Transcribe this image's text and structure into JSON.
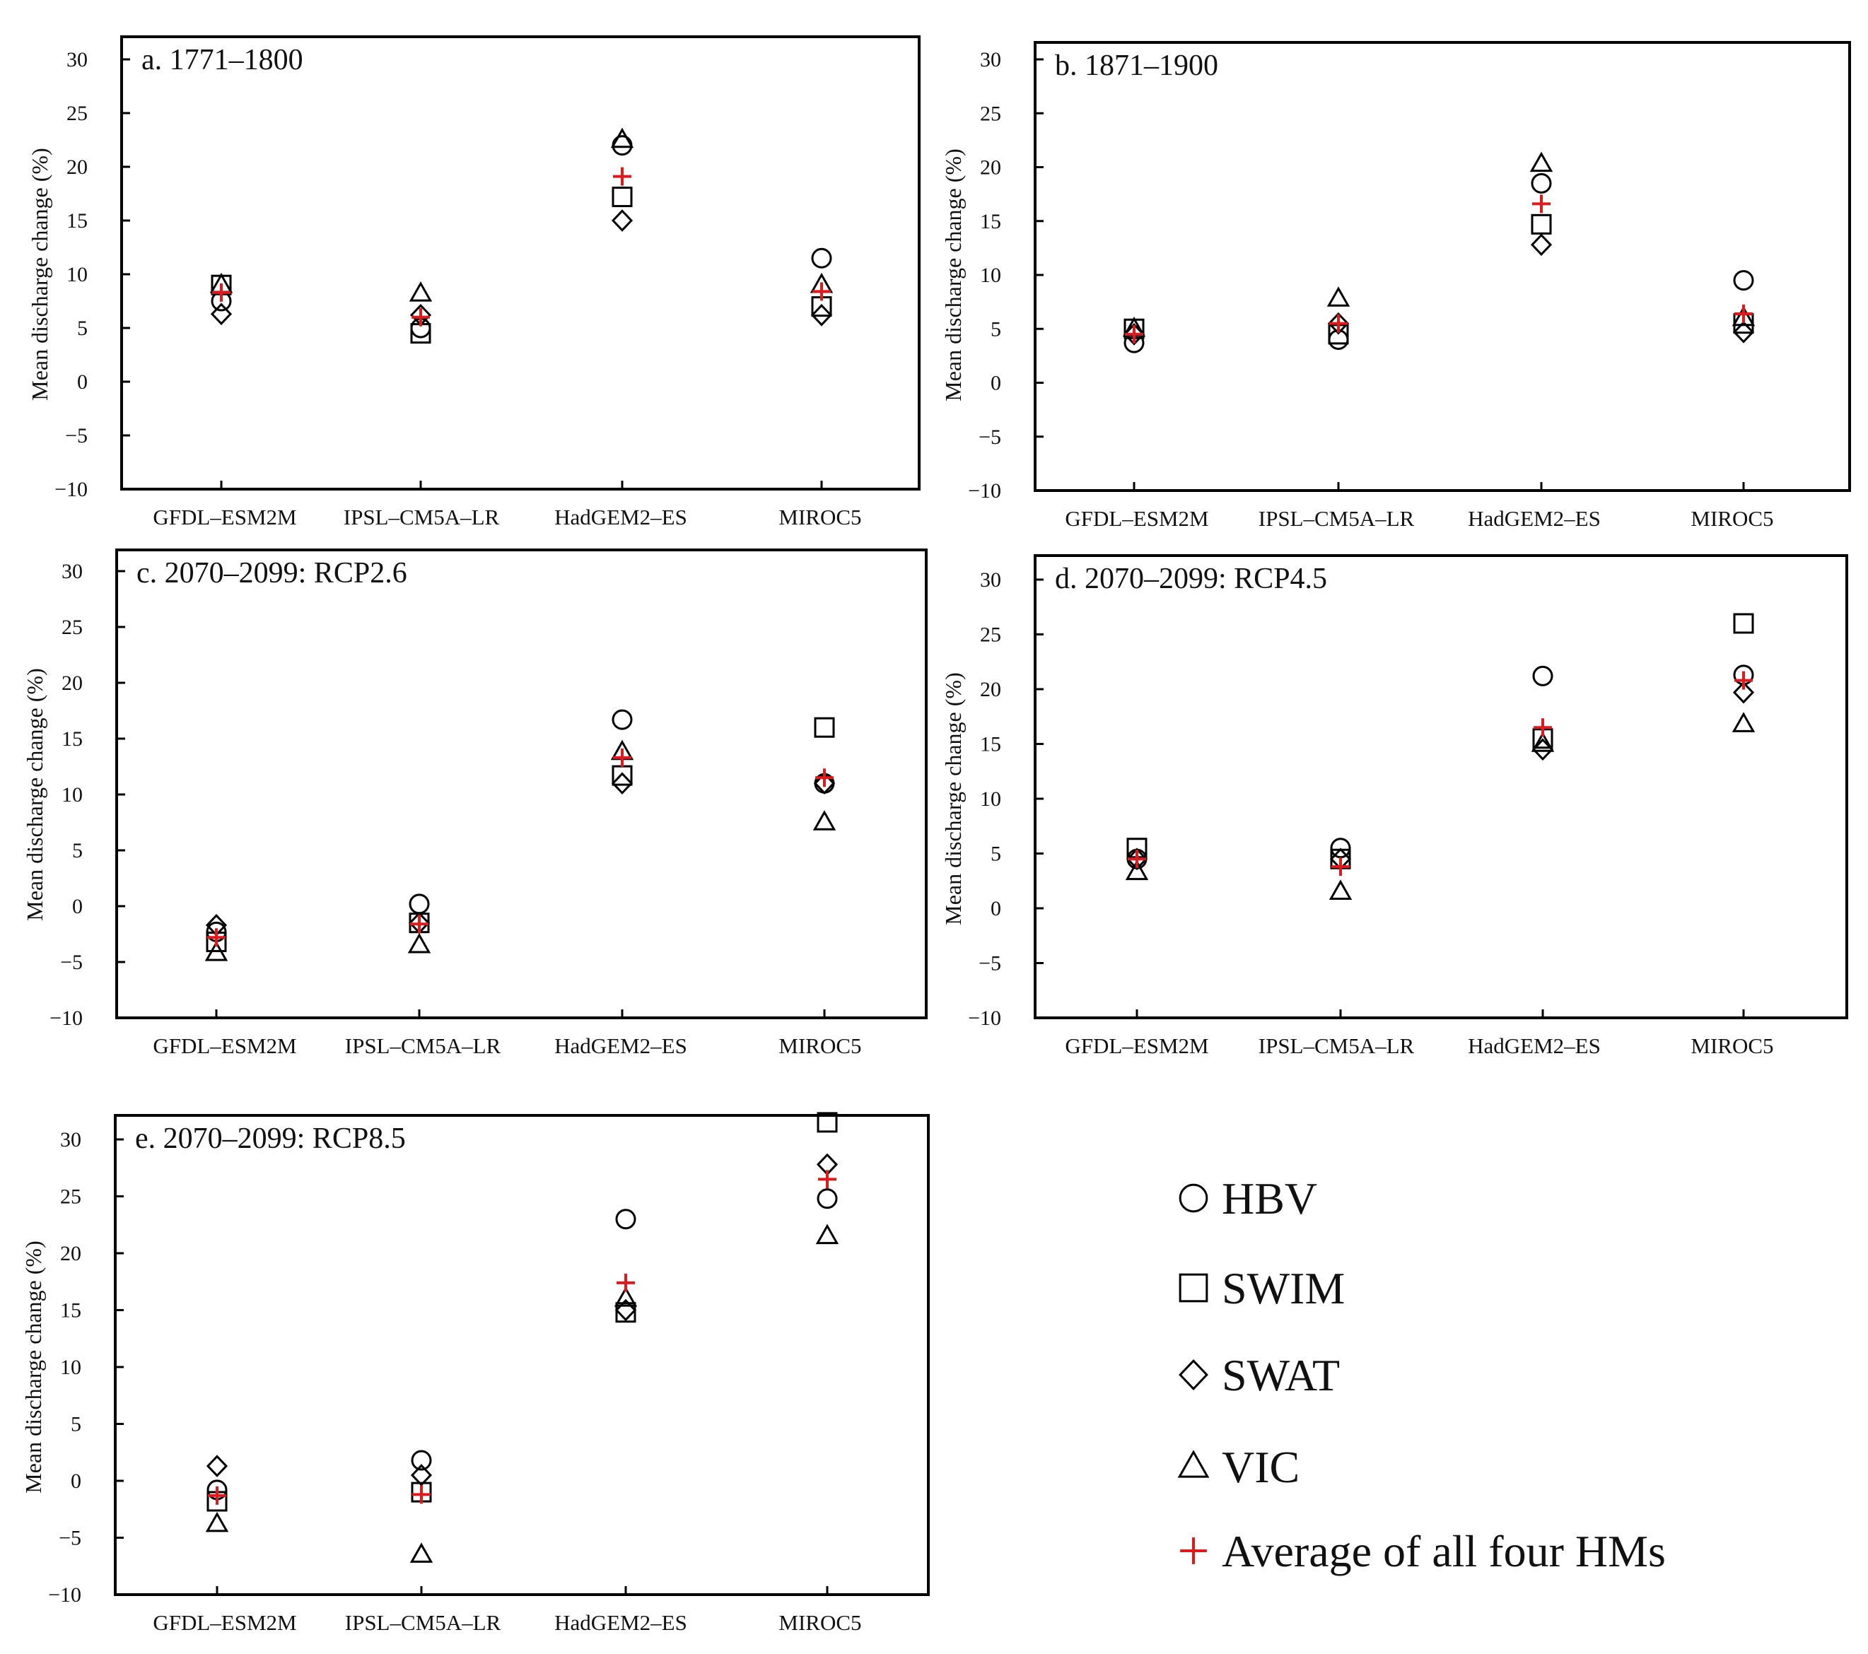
{
  "chart_data": {
    "type": "scatter",
    "ylabel": "Mean discharge change (%)",
    "categories": [
      "GFDL–ESM2M",
      "IPSL–CM5A–LR",
      "HadGEM2–ES",
      "MIROC5"
    ],
    "ylim": [
      -10,
      30
    ],
    "yticks": [
      30,
      25,
      20,
      15,
      10,
      5,
      0,
      -5,
      -10
    ],
    "ytick_labels": [
      "30",
      "25",
      "20",
      "15",
      "10",
      "5",
      "0",
      "−5",
      "−10"
    ],
    "legend": {
      "position": "bottom-right",
      "items": [
        {
          "key": "hbv",
          "label": "HBV",
          "marker": "circle"
        },
        {
          "key": "swim",
          "label": "SWIM",
          "marker": "square"
        },
        {
          "key": "swat",
          "label": "SWAT",
          "marker": "diamond"
        },
        {
          "key": "vic",
          "label": "VIC",
          "marker": "triangle"
        },
        {
          "key": "avg",
          "label": "Average of all four HMs",
          "marker": "plus",
          "color": "#e0191c"
        }
      ]
    },
    "panels": [
      {
        "title": "a. 1771–1800",
        "series": {
          "hbv": [
            7.5,
            5.0,
            22.0,
            11.5
          ],
          "swim": [
            9.0,
            4.5,
            17.2,
            7.0
          ],
          "swat": [
            6.3,
            6.2,
            15.0,
            6.2
          ],
          "vic": [
            9.0,
            8.2,
            22.5,
            9.0
          ],
          "avg": [
            8.3,
            6.0,
            19.1,
            8.4
          ]
        }
      },
      {
        "title": "b. 1871–1900",
        "series": {
          "hbv": [
            3.7,
            4.0,
            18.5,
            9.5
          ],
          "swim": [
            5.0,
            4.5,
            14.7,
            5.5
          ],
          "swat": [
            4.5,
            5.5,
            12.8,
            4.7
          ],
          "vic": [
            5.0,
            7.8,
            20.3,
            6.0
          ],
          "avg": [
            4.5,
            5.5,
            16.6,
            6.4
          ]
        }
      },
      {
        "title": "c. 2070–2099: RCP2.6",
        "series": {
          "hbv": [
            -2.3,
            0.2,
            16.7,
            11.0
          ],
          "swim": [
            -3.2,
            -1.5,
            11.7,
            16.0
          ],
          "swat": [
            -1.7,
            -1.5,
            11.0,
            11.0
          ],
          "vic": [
            -4.2,
            -3.5,
            13.8,
            7.5
          ],
          "avg": [
            -2.8,
            -1.6,
            13.3,
            11.5
          ]
        }
      },
      {
        "title": "d. 2070–2099: RCP4.5",
        "series": {
          "hbv": [
            4.5,
            5.5,
            21.2,
            21.3
          ],
          "swim": [
            5.5,
            4.5,
            15.5,
            26.0
          ],
          "swat": [
            4.5,
            4.5,
            14.5,
            19.7
          ],
          "vic": [
            3.3,
            1.5,
            15.0,
            16.8
          ],
          "avg": [
            4.5,
            3.8,
            16.5,
            20.8
          ]
        }
      },
      {
        "title": "e. 2070–2099: RCP8.5",
        "series": {
          "hbv": [
            -0.8,
            1.8,
            23.0,
            24.8
          ],
          "swim": [
            -1.8,
            -1.0,
            14.8,
            31.5
          ],
          "swat": [
            1.3,
            0.5,
            15.0,
            27.8
          ],
          "vic": [
            -3.8,
            -6.5,
            16.0,
            21.5
          ],
          "avg": [
            -1.3,
            -1.2,
            17.4,
            26.5
          ]
        }
      }
    ]
  }
}
